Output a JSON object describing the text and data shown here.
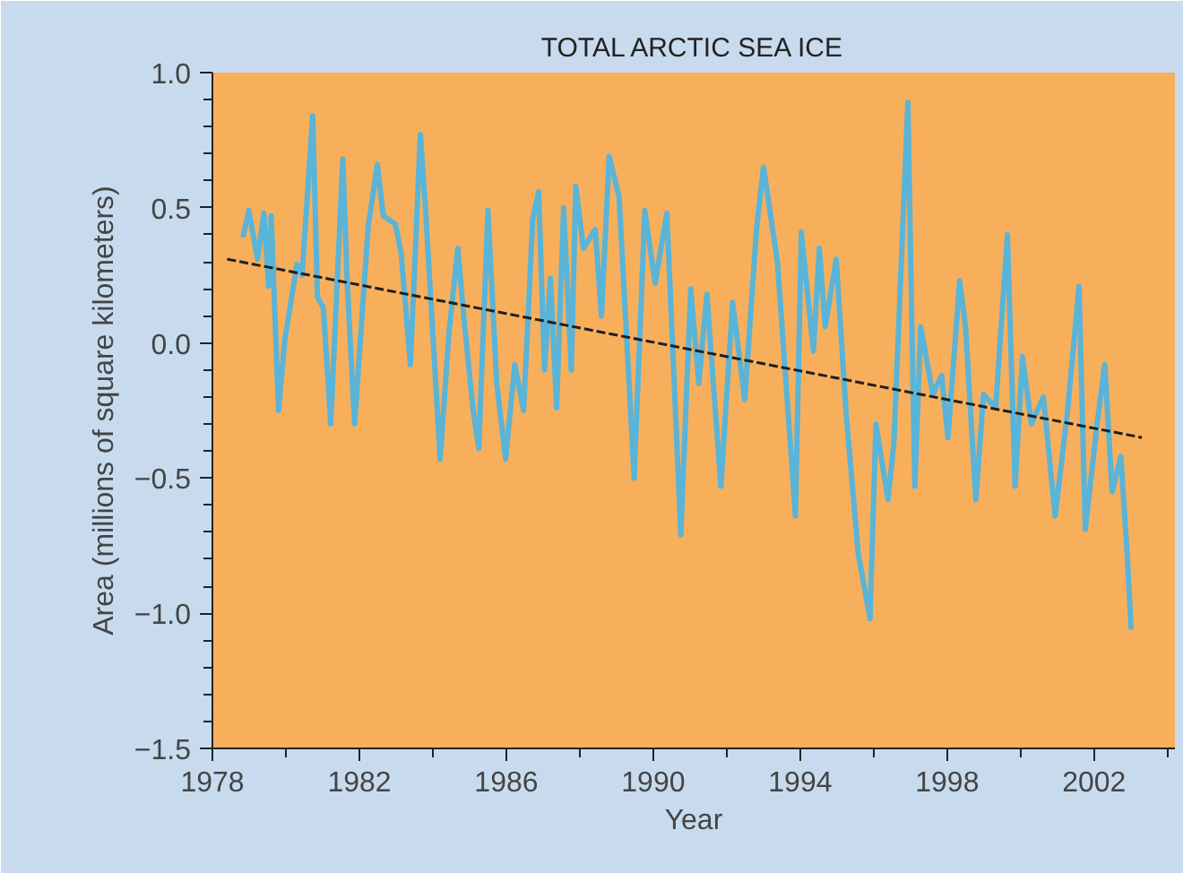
{
  "chart_data": {
    "type": "line",
    "title": "TOTAL ARCTIC SEA ICE",
    "xlabel": "Year",
    "ylabel": "Area (millions of square kilometers)",
    "xlim": [
      1978,
      2004.2
    ],
    "ylim": [
      -1.5,
      1.0
    ],
    "xticks": [
      1978,
      {
        "value": 1980,
        "label": null
      },
      1982,
      {
        "value": 1984,
        "label": null
      },
      1986,
      {
        "value": 1988,
        "label": null
      },
      1990,
      {
        "value": 1992,
        "label": null
      },
      1994,
      {
        "value": 1996,
        "label": null
      },
      1998,
      {
        "value": 2000,
        "label": null
      },
      2002,
      {
        "value": 2004,
        "label": null
      }
    ],
    "yticks": [
      {
        "value": -1.5,
        "label": "−1.5"
      },
      {
        "value": -1.4,
        "label": null
      },
      {
        "value": -1.3,
        "label": null
      },
      {
        "value": -1.2,
        "label": null
      },
      {
        "value": -1.1,
        "label": null
      },
      {
        "value": -1.0,
        "label": "−1.0"
      },
      {
        "value": -0.9,
        "label": null
      },
      {
        "value": -0.8,
        "label": null
      },
      {
        "value": -0.7,
        "label": null
      },
      {
        "value": -0.6,
        "label": null
      },
      {
        "value": -0.5,
        "label": "−0.5"
      },
      {
        "value": -0.4,
        "label": null
      },
      {
        "value": -0.3,
        "label": null
      },
      {
        "value": -0.2,
        "label": null
      },
      {
        "value": -0.1,
        "label": null
      },
      {
        "value": 0.0,
        "label": "0.0"
      },
      {
        "value": 0.1,
        "label": null
      },
      {
        "value": 0.2,
        "label": null
      },
      {
        "value": 0.3,
        "label": null
      },
      {
        "value": 0.4,
        "label": null
      },
      {
        "value": 0.5,
        "label": "0.5"
      },
      {
        "value": 0.6,
        "label": null
      },
      {
        "value": 0.7,
        "label": null
      },
      {
        "value": 0.8,
        "label": null
      },
      {
        "value": 0.9,
        "label": null
      },
      {
        "value": 1.0,
        "label": "1.0"
      }
    ],
    "grid": false,
    "marker": "none",
    "series": [
      {
        "color": "#5ab4d8",
        "line_style": "solid",
        "x": [
          1978.83,
          1978.99,
          1979.23,
          1979.4,
          1979.53,
          1979.6,
          1979.8,
          1979.97,
          1980.3,
          1980.44,
          1980.73,
          1980.86,
          1981.02,
          1981.22,
          1981.55,
          1981.67,
          1981.87,
          1982.24,
          1982.49,
          1982.65,
          1982.98,
          1983.14,
          1983.39,
          1983.66,
          1983.79,
          1984.2,
          1984.44,
          1984.68,
          1984.84,
          1985.09,
          1985.25,
          1985.5,
          1985.74,
          1985.98,
          1986.23,
          1986.47,
          1986.72,
          1986.88,
          1987.04,
          1987.2,
          1987.37,
          1987.56,
          1987.77,
          1987.89,
          1988.1,
          1988.42,
          1988.59,
          1988.8,
          1989.07,
          1989.48,
          1989.77,
          1990.05,
          1990.37,
          1990.75,
          1991.02,
          1991.24,
          1991.46,
          1991.84,
          1992.16,
          1992.49,
          1992.81,
          1993.0,
          1993.38,
          1993.87,
          1994.03,
          1994.36,
          1994.52,
          1994.68,
          1994.98,
          1995.25,
          1995.58,
          1995.9,
          1996.06,
          1996.39,
          1996.55,
          1996.93,
          1997.12,
          1997.28,
          1997.61,
          1997.85,
          1998.02,
          1998.34,
          1998.5,
          1998.78,
          1998.99,
          1999.32,
          1999.64,
          1999.85,
          2000.05,
          2000.29,
          2000.62,
          2000.94,
          2001.27,
          2001.59,
          2001.76,
          2002.08,
          2002.29,
          2002.49,
          2002.73,
          2002.9,
          2003.01
        ],
        "values": [
          0.39,
          0.49,
          0.31,
          0.48,
          0.21,
          0.47,
          -0.25,
          0.01,
          0.29,
          0.25,
          0.84,
          0.17,
          0.13,
          -0.3,
          0.68,
          0.22,
          -0.3,
          0.43,
          0.66,
          0.47,
          0.44,
          0.33,
          -0.08,
          0.77,
          0.52,
          -0.43,
          0.04,
          0.35,
          0.1,
          -0.24,
          -0.39,
          0.49,
          -0.15,
          -0.43,
          -0.08,
          -0.25,
          0.46,
          0.56,
          -0.1,
          0.24,
          -0.24,
          0.5,
          -0.1,
          0.58,
          0.35,
          0.42,
          0.1,
          0.69,
          0.54,
          -0.5,
          0.49,
          0.22,
          0.48,
          -0.71,
          0.2,
          -0.15,
          0.18,
          -0.53,
          0.15,
          -0.21,
          0.42,
          0.65,
          0.3,
          -0.64,
          0.41,
          -0.03,
          0.35,
          0.06,
          0.31,
          -0.26,
          -0.78,
          -1.02,
          -0.3,
          -0.58,
          -0.37,
          0.89,
          -0.53,
          0.06,
          -0.19,
          -0.12,
          -0.35,
          0.23,
          0.06,
          -0.58,
          -0.19,
          -0.24,
          0.4,
          -0.53,
          -0.05,
          -0.3,
          -0.2,
          -0.64,
          -0.26,
          0.21,
          -0.69,
          -0.3,
          -0.08,
          -0.55,
          -0.42,
          -0.78,
          -1.06
        ]
      },
      {
        "color": "#1f1f1f",
        "line_style": "dashed",
        "x": [
          1978.4,
          2003.3
        ],
        "values": [
          0.31,
          -0.35
        ]
      }
    ]
  }
}
